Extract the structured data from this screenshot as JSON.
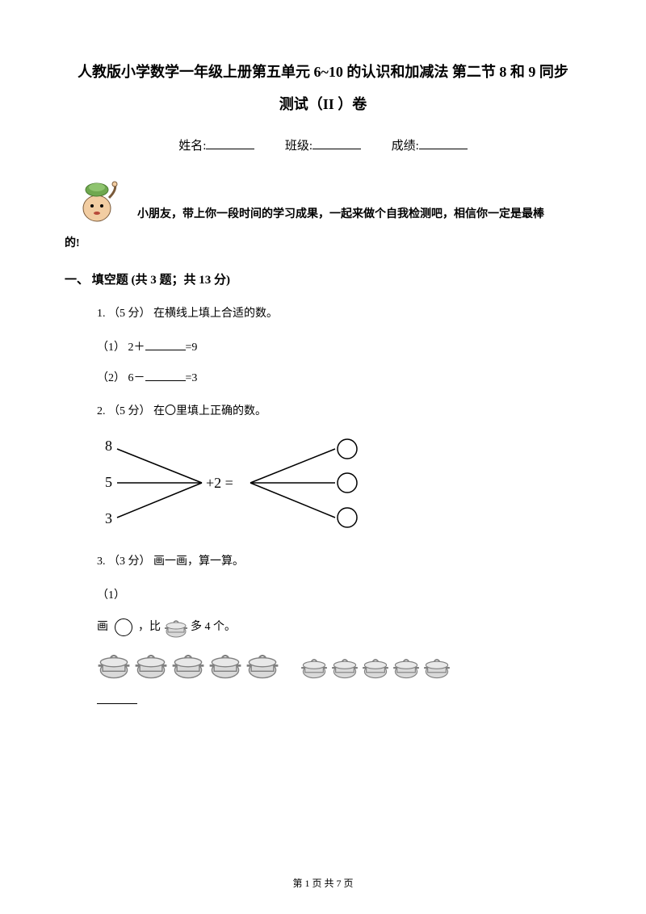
{
  "title_line1": "人教版小学数学一年级上册第五单元 6~10 的认识和加减法 第二节 8 和 9 同步",
  "title_line2": "测试（II ）卷",
  "info": {
    "name_label": "姓名:",
    "class_label": "班级:",
    "score_label": "成绩:"
  },
  "intro": {
    "line1": "小朋友，带上你一段时间的学习成果，一起来做个自我检测吧，相信你一定是最棒",
    "line2": "的!"
  },
  "section1": {
    "heading": "一、 填空题 (共 3 题；共 13 分)",
    "q1": {
      "stem": "1. （5 分） 在横线上填上合适的数。",
      "sub1_prefix": "（1） 2＋",
      "sub1_suffix": "=9",
      "sub2_prefix": "（2） 6－",
      "sub2_suffix": "=3"
    },
    "q2": {
      "stem": "2. （5 分） 在〇里填上正确的数。",
      "diagram": {
        "left_values": [
          "8",
          "5",
          "3"
        ],
        "op": "+2 =",
        "line_color": "#000000",
        "circle_stroke": "#000000",
        "font_size": 18
      }
    },
    "q3": {
      "stem": "3. （3 分） 画一画，算一算。",
      "sub_label": "（1）",
      "draw_prefix": "画",
      "draw_mid": "，比",
      "draw_suffix": " 多 4 个。",
      "pots": {
        "group1_count": 5,
        "group2_count": 5,
        "pot_color": "#bfbfbf",
        "pot_stroke": "#808080"
      }
    }
  },
  "footer": "第 1 页 共 7 页",
  "colors": {
    "text": "#000000",
    "bg": "#ffffff",
    "mascot_green": "#6fa84f",
    "mascot_skin": "#f2cda2",
    "mascot_red": "#b84a3a"
  }
}
